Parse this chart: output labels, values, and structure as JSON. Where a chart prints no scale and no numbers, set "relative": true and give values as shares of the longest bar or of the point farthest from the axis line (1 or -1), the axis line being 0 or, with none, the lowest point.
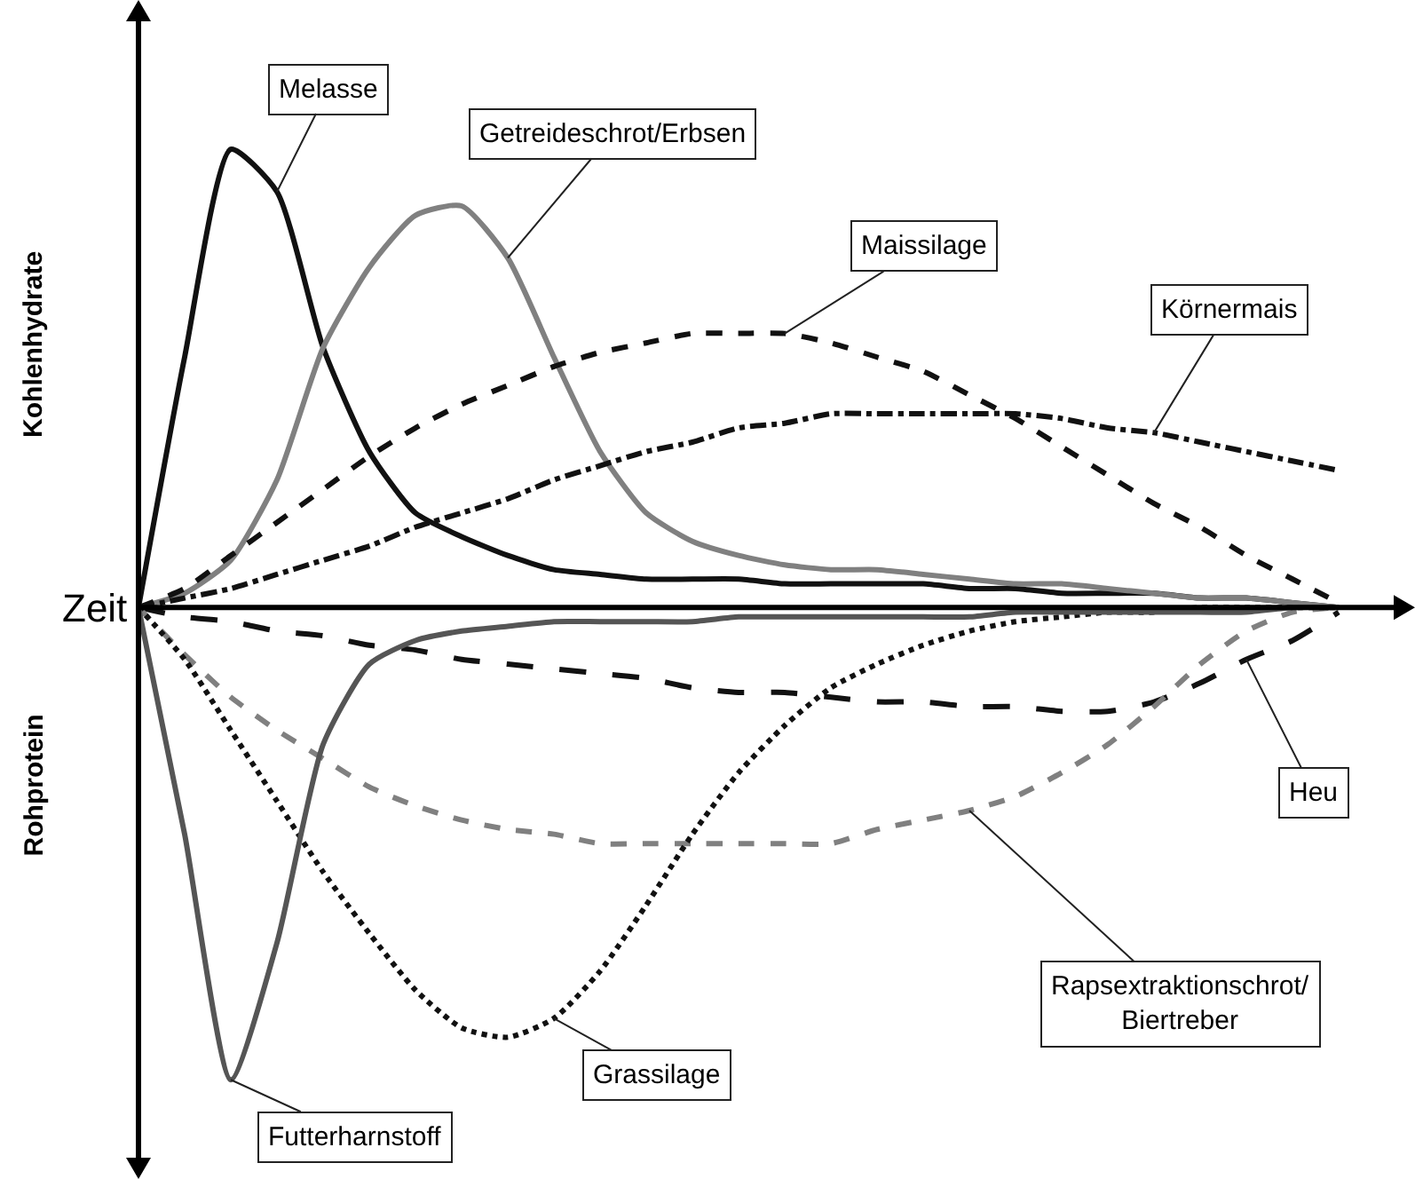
{
  "chart_data": {
    "type": "line",
    "relative": true,
    "xlabel": "Zeit",
    "ylabel": "Kohlenhydrate",
    "annotations": [
      "Rohprotein"
    ],
    "categories": [
      null,
      null,
      null,
      null,
      null,
      null,
      null,
      null,
      null,
      null,
      null,
      null,
      null,
      null,
      null,
      null,
      null,
      null,
      null,
      null,
      null,
      null,
      null,
      null,
      null,
      null,
      null
    ],
    "series": [
      {
        "name": "Melasse",
        "color": "#111111",
        "line_style": "solid",
        "values": [
          0,
          0.53,
          0.97,
          0.88,
          0.55,
          0.33,
          0.2,
          0.15,
          0.11,
          0.08,
          0.07,
          0.06,
          0.06,
          0.06,
          0.05,
          0.05,
          0.05,
          0.05,
          0.04,
          0.04,
          0.03,
          0.03,
          0.03,
          0.02,
          0.02,
          0.01,
          0
        ]
      },
      {
        "name": "Getreideschrot/Erbsen",
        "color": "#808080",
        "line_style": "solid",
        "values": [
          0,
          0.03,
          0.1,
          0.27,
          0.55,
          0.72,
          0.83,
          0.85,
          0.74,
          0.53,
          0.33,
          0.2,
          0.14,
          0.11,
          0.09,
          0.08,
          0.08,
          0.07,
          0.06,
          0.05,
          0.05,
          0.04,
          0.03,
          0.02,
          0.02,
          0.01,
          0
        ]
      },
      {
        "name": "Maissilage",
        "color": "#111111",
        "line_style": "dashed",
        "values": [
          0,
          0.04,
          0.11,
          0.18,
          0.25,
          0.32,
          0.38,
          0.43,
          0.47,
          0.51,
          0.54,
          0.56,
          0.58,
          0.58,
          0.58,
          0.56,
          0.53,
          0.5,
          0.45,
          0.4,
          0.34,
          0.28,
          0.22,
          0.17,
          0.11,
          0.06,
          0.01
        ]
      },
      {
        "name": "Körnermais",
        "color": "#111111",
        "line_style": "dashdot",
        "values": [
          0,
          0.02,
          0.04,
          0.07,
          0.1,
          0.13,
          0.17,
          0.2,
          0.23,
          0.27,
          0.3,
          0.33,
          0.35,
          0.38,
          0.39,
          0.41,
          0.41,
          0.41,
          0.41,
          0.41,
          0.4,
          0.38,
          0.37,
          0.35,
          0.33,
          0.31,
          0.29
        ]
      },
      {
        "name": "Heu",
        "color": "#111111",
        "line_style": "longdash",
        "values": [
          0,
          -0.02,
          -0.03,
          -0.05,
          -0.06,
          -0.08,
          -0.09,
          -0.11,
          -0.12,
          -0.13,
          -0.14,
          -0.15,
          -0.17,
          -0.18,
          -0.18,
          -0.19,
          -0.2,
          -0.2,
          -0.21,
          -0.21,
          -0.22,
          -0.22,
          -0.2,
          -0.16,
          -0.11,
          -0.07,
          -0.01
        ]
      },
      {
        "name": "Rapsextraktionschrot/Biertreber",
        "color": "#808080",
        "line_style": "dashed",
        "values": [
          0,
          -0.1,
          -0.19,
          -0.26,
          -0.32,
          -0.38,
          -0.42,
          -0.45,
          -0.47,
          -0.48,
          -0.5,
          -0.5,
          -0.5,
          -0.5,
          -0.5,
          -0.5,
          -0.47,
          -0.45,
          -0.43,
          -0.4,
          -0.35,
          -0.29,
          -0.21,
          -0.12,
          -0.05,
          -0.01,
          0
        ]
      },
      {
        "name": "Grassilage",
        "color": "#111111",
        "line_style": "dotted",
        "values": [
          0,
          -0.11,
          -0.26,
          -0.41,
          -0.56,
          -0.69,
          -0.81,
          -0.89,
          -0.91,
          -0.87,
          -0.77,
          -0.63,
          -0.48,
          -0.35,
          -0.25,
          -0.17,
          -0.12,
          -0.08,
          -0.05,
          -0.03,
          -0.02,
          -0.01,
          -0.01,
          0,
          0,
          0,
          0
        ]
      },
      {
        "name": "Futterharnstoff",
        "color": "#555555",
        "line_style": "solid",
        "values": [
          0,
          -0.48,
          -1,
          -0.71,
          -0.29,
          -0.12,
          -0.07,
          -0.05,
          -0.04,
          -0.03,
          -0.03,
          -0.03,
          -0.03,
          -0.02,
          -0.02,
          -0.02,
          -0.02,
          -0.02,
          -0.02,
          -0.01,
          -0.01,
          -0.01,
          -0.01,
          -0.01,
          -0.01,
          0,
          0
        ]
      }
    ]
  }
}
